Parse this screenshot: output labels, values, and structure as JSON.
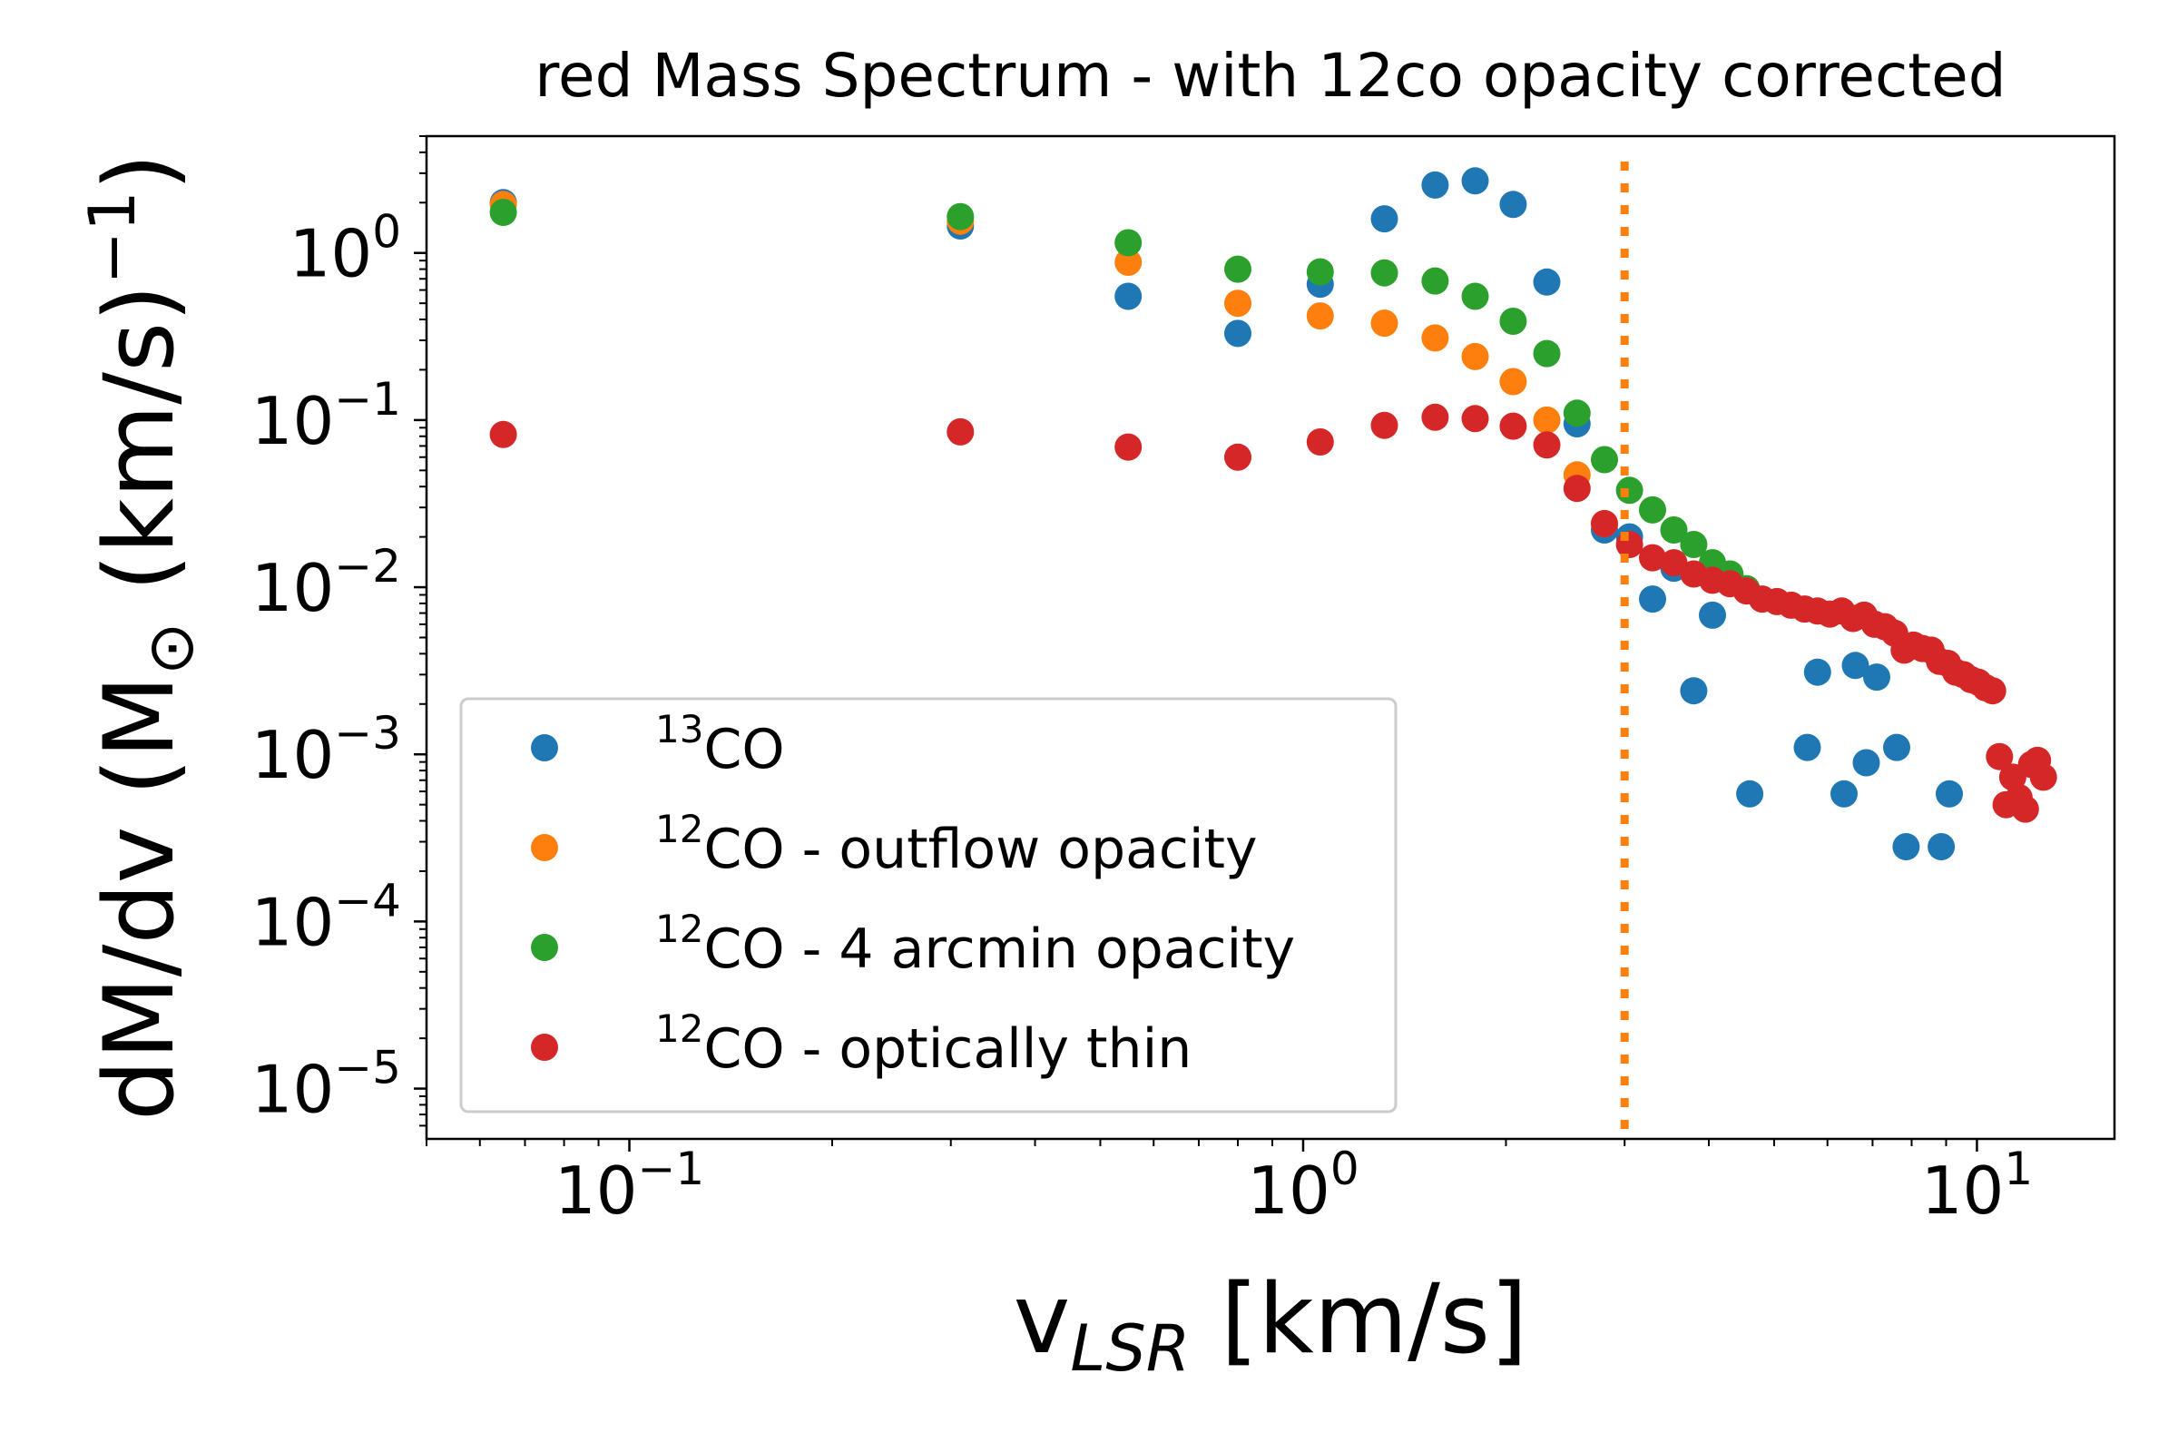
{
  "chart_data": {
    "type": "scatter",
    "title": "red Mass Spectrum - with 12co opacity corrected",
    "xlabel": {
      "main": "v",
      "sub": "LSR",
      "tail": " [km/s]"
    },
    "ylabel": {
      "head": "dM/dv (M",
      "sun": "⊙",
      "mid": " (km/s)",
      "sup": "−1",
      "tail": ")"
    },
    "x_scale": "log",
    "y_scale": "log",
    "xlim": [
      0.05,
      16
    ],
    "ylim": [
      5e-06,
      5.0
    ],
    "x_ticks": [
      {
        "value": 0.1,
        "base": "10",
        "exp": "−1"
      },
      {
        "value": 1,
        "base": "10",
        "exp": "0"
      },
      {
        "value": 10,
        "base": "10",
        "exp": "1"
      }
    ],
    "y_ticks": [
      {
        "value": 1,
        "base": "10",
        "exp": "0"
      },
      {
        "value": 0.1,
        "base": "10",
        "exp": "−1"
      },
      {
        "value": 0.01,
        "base": "10",
        "exp": "−2"
      },
      {
        "value": 0.001,
        "base": "10",
        "exp": "−3"
      },
      {
        "value": 0.0001,
        "base": "10",
        "exp": "−4"
      },
      {
        "value": 1e-05,
        "base": "10",
        "exp": "−5"
      }
    ],
    "grid": false,
    "legend_position": "lower-left",
    "reference_line": {
      "x": 3.0,
      "style": "dotted",
      "color": "#ff7f0e"
    },
    "series": [
      {
        "name": "13CO",
        "legend": {
          "sup": "13",
          "text": "CO"
        },
        "color": "#1f77b4",
        "points": [
          [
            0.065,
            2.0
          ],
          [
            0.31,
            1.45
          ],
          [
            0.55,
            0.55
          ],
          [
            0.8,
            0.33
          ],
          [
            1.06,
            0.65
          ],
          [
            1.32,
            1.6
          ],
          [
            1.57,
            2.55
          ],
          [
            1.8,
            2.7
          ],
          [
            2.05,
            1.95
          ],
          [
            2.3,
            0.67
          ],
          [
            2.55,
            0.095
          ],
          [
            2.8,
            0.022
          ],
          [
            3.05,
            0.02
          ],
          [
            3.3,
            0.0085
          ],
          [
            3.55,
            0.013
          ],
          [
            3.8,
            0.0024
          ],
          [
            4.05,
            0.0068
          ],
          [
            4.6,
            0.00058
          ],
          [
            5.6,
            0.0011
          ],
          [
            5.8,
            0.0031
          ],
          [
            6.35,
            0.00058
          ],
          [
            6.6,
            0.0034
          ],
          [
            6.85,
            0.00089
          ],
          [
            7.1,
            0.0029
          ],
          [
            7.6,
            0.0011
          ],
          [
            7.85,
            0.00028
          ],
          [
            8.85,
            0.00028
          ],
          [
            9.1,
            0.00058
          ]
        ]
      },
      {
        "name": "12CO - outflow opacity",
        "legend": {
          "sup": "12",
          "text": "CO - outflow opacity"
        },
        "color": "#ff7f0e",
        "points": [
          [
            0.065,
            1.95
          ],
          [
            0.31,
            1.55
          ],
          [
            0.55,
            0.88
          ],
          [
            0.8,
            0.5
          ],
          [
            1.06,
            0.42
          ],
          [
            1.32,
            0.38
          ],
          [
            1.57,
            0.31
          ],
          [
            1.8,
            0.24
          ],
          [
            2.05,
            0.17
          ],
          [
            2.3,
            0.1
          ],
          [
            2.55,
            0.047
          ],
          [
            2.8,
            0.024
          ]
        ]
      },
      {
        "name": "12CO - 4 arcmin opacity",
        "legend": {
          "sup": "12",
          "text": "CO - 4 arcmin opacity"
        },
        "color": "#2ca02c",
        "points": [
          [
            0.065,
            1.75
          ],
          [
            0.31,
            1.65
          ],
          [
            0.55,
            1.15
          ],
          [
            0.8,
            0.8
          ],
          [
            1.06,
            0.77
          ],
          [
            1.32,
            0.76
          ],
          [
            1.57,
            0.68
          ],
          [
            1.8,
            0.55
          ],
          [
            2.05,
            0.39
          ],
          [
            2.3,
            0.25
          ],
          [
            2.55,
            0.11
          ],
          [
            2.8,
            0.058
          ],
          [
            3.05,
            0.038
          ],
          [
            3.3,
            0.029
          ],
          [
            3.55,
            0.022
          ],
          [
            3.8,
            0.018
          ],
          [
            4.05,
            0.014
          ],
          [
            4.3,
            0.012
          ],
          [
            4.55,
            0.0098
          ]
        ]
      },
      {
        "name": "12CO - optically thin",
        "legend": {
          "sup": "12",
          "text": "CO - optically thin"
        },
        "color": "#d62728",
        "points": [
          [
            0.065,
            0.082
          ],
          [
            0.31,
            0.085
          ],
          [
            0.55,
            0.069
          ],
          [
            0.8,
            0.06
          ],
          [
            1.06,
            0.074
          ],
          [
            1.32,
            0.093
          ],
          [
            1.57,
            0.104
          ],
          [
            1.8,
            0.102
          ],
          [
            2.05,
            0.092
          ],
          [
            2.3,
            0.071
          ],
          [
            2.55,
            0.039
          ],
          [
            2.8,
            0.024
          ],
          [
            3.05,
            0.018
          ],
          [
            3.3,
            0.015
          ],
          [
            3.55,
            0.014
          ],
          [
            3.8,
            0.012
          ],
          [
            4.05,
            0.011
          ],
          [
            4.3,
            0.0105
          ],
          [
            4.55,
            0.0095
          ],
          [
            4.8,
            0.0085
          ],
          [
            5.05,
            0.0082
          ],
          [
            5.3,
            0.0078
          ],
          [
            5.55,
            0.0074
          ],
          [
            5.8,
            0.0072
          ],
          [
            6.05,
            0.0069
          ],
          [
            6.3,
            0.0072
          ],
          [
            6.55,
            0.0065
          ],
          [
            6.8,
            0.0068
          ],
          [
            7.05,
            0.006
          ],
          [
            7.3,
            0.0058
          ],
          [
            7.55,
            0.0053
          ],
          [
            7.8,
            0.0042
          ],
          [
            8.05,
            0.0045
          ],
          [
            8.3,
            0.0043
          ],
          [
            8.55,
            0.0042
          ],
          [
            8.8,
            0.0036
          ],
          [
            9.05,
            0.0035
          ],
          [
            9.3,
            0.0031
          ],
          [
            9.55,
            0.003
          ],
          [
            9.8,
            0.0028
          ],
          [
            10.05,
            0.0027
          ],
          [
            10.3,
            0.0025
          ],
          [
            10.55,
            0.0024
          ],
          [
            10.8,
            0.00097
          ],
          [
            11.05,
            0.0005
          ],
          [
            11.3,
            0.00073
          ],
          [
            11.55,
            0.00055
          ],
          [
            11.8,
            0.00047
          ],
          [
            12.05,
            0.00087
          ],
          [
            12.3,
            0.00092
          ],
          [
            12.55,
            0.00073
          ]
        ]
      }
    ]
  }
}
